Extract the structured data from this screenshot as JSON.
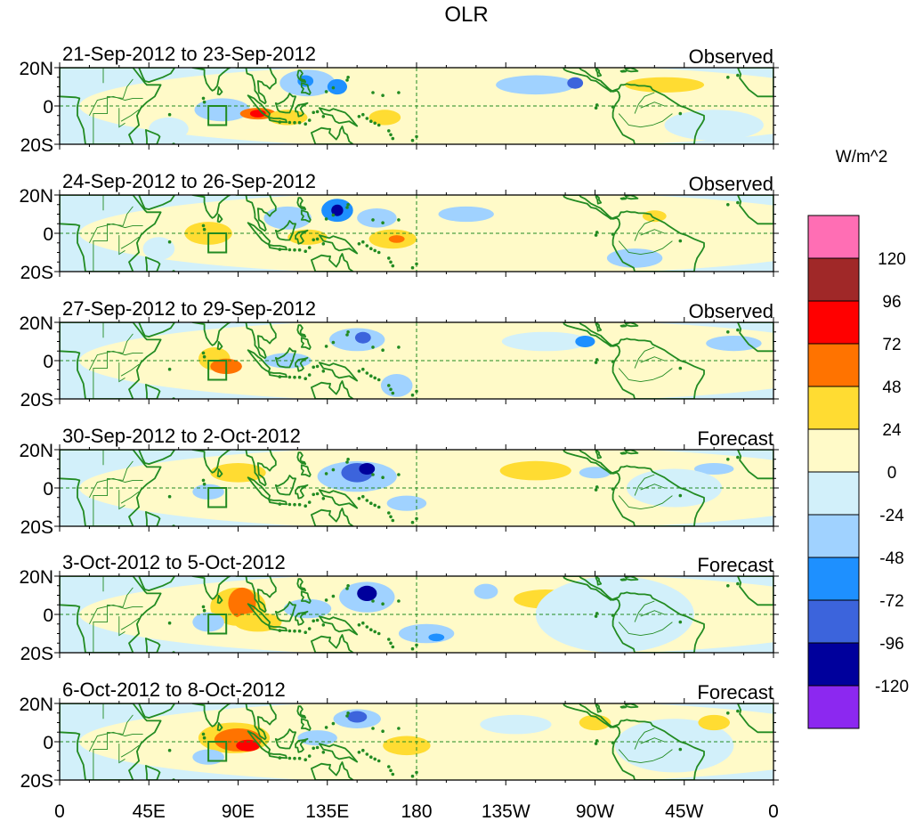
{
  "chart_data": {
    "type": "heatmap",
    "title": "OLR",
    "units": "W/m^2",
    "x_ticks": [
      "0",
      "45E",
      "90E",
      "135E",
      "180",
      "135W",
      "90W",
      "45W",
      "0"
    ],
    "y_ticks": [
      "20N",
      "0",
      "20S"
    ],
    "x_range_deg_east": [
      0,
      360
    ],
    "y_range_deg": [
      -20,
      20
    ],
    "reference_lines": {
      "equator": true,
      "dateline": true
    },
    "region_box": {
      "lon": [
        75,
        84
      ],
      "lat": [
        -10,
        0
      ]
    },
    "colorbar": {
      "levels": [
        -120,
        -96,
        -72,
        -48,
        -24,
        0,
        24,
        48,
        72,
        96,
        120
      ],
      "colors": [
        "#8c28f0",
        "#00009c",
        "#3c64dc",
        "#1e90ff",
        "#a0d2ff",
        "#d2f0fa",
        "#fffac8",
        "#ffdc32",
        "#ff7300",
        "#ff0000",
        "#a02828",
        "#ff6eb4"
      ]
    },
    "land_color": "#228B22",
    "panels": [
      {
        "date_range": "21-Sep-2012 to 23-Sep-2012",
        "type": "Observed",
        "anomalies": [
          {
            "lon": 210,
            "lat": 0,
            "rx": 200,
            "ry": 22,
            "v": 12
          },
          {
            "lon": 82,
            "lat": -2,
            "rx": 14,
            "ry": 6,
            "v": -36
          },
          {
            "lon": 100,
            "lat": -4,
            "rx": 9,
            "ry": 3,
            "v": 66
          },
          {
            "lon": 100,
            "lat": -4,
            "rx": 4,
            "ry": 2,
            "v": 88
          },
          {
            "lon": 125,
            "lat": 12,
            "rx": 14,
            "ry": 7,
            "v": -40
          },
          {
            "lon": 124,
            "lat": 13,
            "rx": 4,
            "ry": 3,
            "v": -70
          },
          {
            "lon": 140,
            "lat": 10,
            "rx": 5,
            "ry": 4,
            "v": -56
          },
          {
            "lon": 115,
            "lat": -6,
            "rx": 10,
            "ry": 4,
            "v": 30
          },
          {
            "lon": 164,
            "lat": -6,
            "rx": 8,
            "ry": 4,
            "v": 30
          },
          {
            "lon": 240,
            "lat": 11,
            "rx": 20,
            "ry": 5,
            "v": -30
          },
          {
            "lon": 305,
            "lat": 11,
            "rx": 20,
            "ry": 4,
            "v": 30
          },
          {
            "lon": 260,
            "lat": 12,
            "rx": 4,
            "ry": 3,
            "v": -76
          },
          {
            "lon": 55,
            "lat": -12,
            "rx": 10,
            "ry": 6,
            "v": -20
          },
          {
            "lon": 330,
            "lat": -10,
            "rx": 25,
            "ry": 8,
            "v": -20
          }
        ]
      },
      {
        "date_range": "24-Sep-2012 to 26-Sep-2012",
        "type": "Observed",
        "anomalies": [
          {
            "lon": 210,
            "lat": 0,
            "rx": 200,
            "ry": 22,
            "v": 10
          },
          {
            "lon": 75,
            "lat": 0,
            "rx": 12,
            "ry": 6,
            "v": 30
          },
          {
            "lon": 140,
            "lat": 12,
            "rx": 8,
            "ry": 6,
            "v": -60
          },
          {
            "lon": 140,
            "lat": 12,
            "rx": 3,
            "ry": 3,
            "v": -110
          },
          {
            "lon": 115,
            "lat": 8,
            "rx": 12,
            "ry": 6,
            "v": -36
          },
          {
            "lon": 160,
            "lat": 8,
            "rx": 10,
            "ry": 5,
            "v": -36
          },
          {
            "lon": 125,
            "lat": -2,
            "rx": 10,
            "ry": 4,
            "v": 30
          },
          {
            "lon": 168,
            "lat": -3,
            "rx": 12,
            "ry": 5,
            "v": 36
          },
          {
            "lon": 170,
            "lat": -3,
            "rx": 4,
            "ry": 2,
            "v": 60
          },
          {
            "lon": 205,
            "lat": 10,
            "rx": 14,
            "ry": 4,
            "v": -30
          },
          {
            "lon": 290,
            "lat": -13,
            "rx": 14,
            "ry": 5,
            "v": -40
          },
          {
            "lon": 300,
            "lat": 9,
            "rx": 6,
            "ry": 3,
            "v": 30
          },
          {
            "lon": 50,
            "lat": -8,
            "rx": 8,
            "ry": 6,
            "v": -20
          }
        ]
      },
      {
        "date_range": "27-Sep-2012 to 29-Sep-2012",
        "type": "Observed",
        "anomalies": [
          {
            "lon": 210,
            "lat": 0,
            "rx": 200,
            "ry": 22,
            "v": 10
          },
          {
            "lon": 78,
            "lat": 1,
            "rx": 8,
            "ry": 6,
            "v": 32
          },
          {
            "lon": 84,
            "lat": -3,
            "rx": 8,
            "ry": 4,
            "v": 60
          },
          {
            "lon": 150,
            "lat": 11,
            "rx": 14,
            "ry": 6,
            "v": -40
          },
          {
            "lon": 153,
            "lat": 12,
            "rx": 4,
            "ry": 3,
            "v": -80
          },
          {
            "lon": 115,
            "lat": 0,
            "rx": 12,
            "ry": 4,
            "v": -30
          },
          {
            "lon": 170,
            "lat": -13,
            "rx": 8,
            "ry": 6,
            "v": -40
          },
          {
            "lon": 245,
            "lat": 10,
            "rx": 22,
            "ry": 5,
            "v": -20
          },
          {
            "lon": 265,
            "lat": 10,
            "rx": 5,
            "ry": 3,
            "v": -60
          },
          {
            "lon": 340,
            "lat": 9,
            "rx": 14,
            "ry": 4,
            "v": -36
          },
          {
            "lon": 300,
            "lat": -8,
            "rx": 20,
            "ry": 6,
            "v": 14
          }
        ]
      },
      {
        "date_range": "30-Sep-2012 to 2-Oct-2012",
        "type": "Forecast",
        "anomalies": [
          {
            "lon": 210,
            "lat": 0,
            "rx": 200,
            "ry": 22,
            "v": 10
          },
          {
            "lon": 150,
            "lat": 6,
            "rx": 20,
            "ry": 8,
            "v": -40
          },
          {
            "lon": 150,
            "lat": 8,
            "rx": 8,
            "ry": 5,
            "v": -80
          },
          {
            "lon": 155,
            "lat": 10,
            "rx": 4,
            "ry": 3,
            "v": -100
          },
          {
            "lon": 90,
            "lat": 8,
            "rx": 14,
            "ry": 5,
            "v": 30
          },
          {
            "lon": 75,
            "lat": -2,
            "rx": 8,
            "ry": 4,
            "v": -40
          },
          {
            "lon": 175,
            "lat": -8,
            "rx": 10,
            "ry": 4,
            "v": -30
          },
          {
            "lon": 240,
            "lat": 9,
            "rx": 18,
            "ry": 5,
            "v": 30
          },
          {
            "lon": 270,
            "lat": 8,
            "rx": 8,
            "ry": 3,
            "v": -40
          },
          {
            "lon": 330,
            "lat": 10,
            "rx": 10,
            "ry": 3,
            "v": -40
          },
          {
            "lon": 310,
            "lat": 0,
            "rx": 24,
            "ry": 10,
            "v": -16
          }
        ]
      },
      {
        "date_range": "3-Oct-2012 to 5-Oct-2012",
        "type": "Forecast",
        "anomalies": [
          {
            "lon": 210,
            "lat": 0,
            "rx": 200,
            "ry": 22,
            "v": 10
          },
          {
            "lon": 90,
            "lat": 4,
            "rx": 14,
            "ry": 10,
            "v": 40
          },
          {
            "lon": 92,
            "lat": 6,
            "rx": 7,
            "ry": 8,
            "v": 66
          },
          {
            "lon": 100,
            "lat": -4,
            "rx": 12,
            "ry": 5,
            "v": 36
          },
          {
            "lon": 155,
            "lat": 9,
            "rx": 14,
            "ry": 8,
            "v": -40
          },
          {
            "lon": 155,
            "lat": 11,
            "rx": 5,
            "ry": 4,
            "v": -100
          },
          {
            "lon": 75,
            "lat": -4,
            "rx": 8,
            "ry": 5,
            "v": -40
          },
          {
            "lon": 125,
            "lat": 3,
            "rx": 12,
            "ry": 5,
            "v": -30
          },
          {
            "lon": 185,
            "lat": -10,
            "rx": 14,
            "ry": 5,
            "v": -30
          },
          {
            "lon": 190,
            "lat": -12,
            "rx": 4,
            "ry": 2,
            "v": -70
          },
          {
            "lon": 215,
            "lat": 12,
            "rx": 6,
            "ry": 4,
            "v": -40
          },
          {
            "lon": 245,
            "lat": 8,
            "rx": 16,
            "ry": 5,
            "v": 30
          },
          {
            "lon": 280,
            "lat": 0,
            "rx": 40,
            "ry": 20,
            "v": -16
          }
        ]
      },
      {
        "date_range": "6-Oct-2012 to 8-Oct-2012",
        "type": "Forecast",
        "anomalies": [
          {
            "lon": 210,
            "lat": 0,
            "rx": 200,
            "ry": 22,
            "v": 10
          },
          {
            "lon": 88,
            "lat": 2,
            "rx": 18,
            "ry": 8,
            "v": 40
          },
          {
            "lon": 90,
            "lat": 1,
            "rx": 12,
            "ry": 6,
            "v": 64
          },
          {
            "lon": 95,
            "lat": -2,
            "rx": 6,
            "ry": 3,
            "v": 80
          },
          {
            "lon": 150,
            "lat": 12,
            "rx": 12,
            "ry": 5,
            "v": -40
          },
          {
            "lon": 150,
            "lat": 13,
            "rx": 5,
            "ry": 3,
            "v": -80
          },
          {
            "lon": 130,
            "lat": 2,
            "rx": 10,
            "ry": 4,
            "v": -30
          },
          {
            "lon": 75,
            "lat": -8,
            "rx": 8,
            "ry": 4,
            "v": -30
          },
          {
            "lon": 175,
            "lat": -2,
            "rx": 12,
            "ry": 5,
            "v": 30
          },
          {
            "lon": 230,
            "lat": 9,
            "rx": 18,
            "ry": 5,
            "v": -20
          },
          {
            "lon": 270,
            "lat": 10,
            "rx": 8,
            "ry": 4,
            "v": 30
          },
          {
            "lon": 310,
            "lat": -2,
            "rx": 30,
            "ry": 14,
            "v": -16
          },
          {
            "lon": 330,
            "lat": 10,
            "rx": 8,
            "ry": 4,
            "v": 30
          }
        ]
      }
    ]
  }
}
